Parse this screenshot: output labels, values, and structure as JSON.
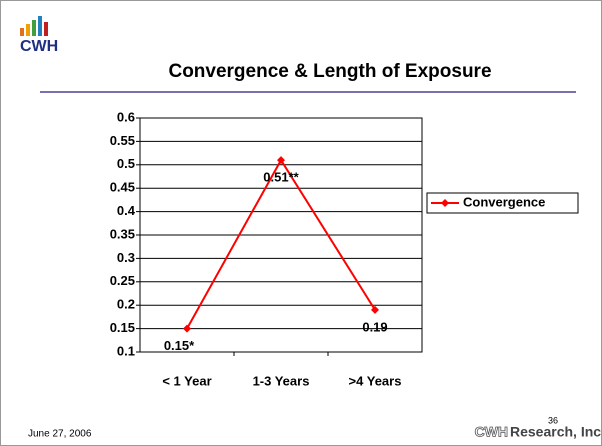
{
  "logo_text": "CWH",
  "chart_data": {
    "type": "line",
    "title": "Convergence & Length of Exposure",
    "categories": [
      "< 1 Year",
      "1-3 Years",
      ">4 Years"
    ],
    "series": [
      {
        "name": "Convergence",
        "color": "#ff0000",
        "values": [
          0.15,
          0.51,
          0.19
        ],
        "value_labels": [
          "0.15*",
          "0.51**",
          "0.19"
        ]
      }
    ],
    "ylim": [
      0.1,
      0.6
    ],
    "yticks": [
      0.1,
      0.15,
      0.2,
      0.25,
      0.3,
      0.35,
      0.4,
      0.45,
      0.5,
      0.55,
      0.6
    ],
    "grid": true,
    "legend": "right"
  },
  "footer": {
    "date": "June 27, 2006",
    "page": "36",
    "company_logo": "CWH",
    "company": "Research, Inc."
  }
}
